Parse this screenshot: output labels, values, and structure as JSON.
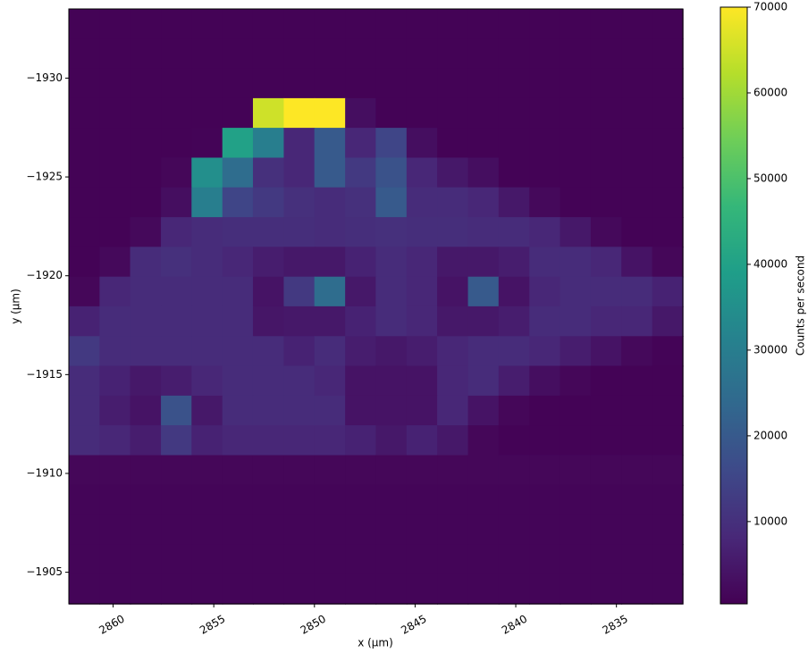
{
  "chart_data": {
    "type": "heatmap",
    "xlabel": "x (µm)",
    "ylabel": "y (µm)",
    "colorbar_label": "Counts per second",
    "colormap": "viridis",
    "xlim": [
      2862.2,
      2831.7
    ],
    "xticks": [
      2860,
      2855,
      2850,
      2845,
      2840,
      2835
    ],
    "ylim": [
      -1933.5,
      -1903.4
    ],
    "yticks": [
      {
        "value": -1930,
        "label": "−1930"
      },
      {
        "value": -1925,
        "label": "−1925"
      },
      {
        "value": -1920,
        "label": "−1920"
      },
      {
        "value": -1915,
        "label": "−1915"
      },
      {
        "value": -1910,
        "label": "−1910"
      },
      {
        "value": -1905,
        "label": "−1905"
      }
    ],
    "clim": [
      400,
      70000
    ],
    "cticks": [
      10000,
      20000,
      30000,
      40000,
      50000,
      60000,
      70000
    ],
    "x": [
      2861.44,
      2859.91,
      2858.39,
      2856.86,
      2855.34,
      2853.81,
      2852.29,
      2850.76,
      2849.24,
      2847.71,
      2846.19,
      2844.66,
      2843.14,
      2841.61,
      2840.09,
      2838.56,
      2837.04,
      2835.51,
      2833.99,
      2832.46
    ],
    "y": [
      -1932.75,
      -1931.24,
      -1929.74,
      -1928.23,
      -1926.73,
      -1925.22,
      -1923.72,
      -1922.21,
      -1920.71,
      -1919.2,
      -1917.7,
      -1916.19,
      -1914.69,
      -1913.18,
      -1911.68,
      -1910.17,
      -1908.67,
      -1907.16,
      -1905.66,
      -1904.15
    ],
    "values": [
      [
        800,
        800,
        800,
        800,
        800,
        800,
        800,
        800,
        800,
        800,
        800,
        800,
        800,
        800,
        800,
        800,
        800,
        800,
        800,
        800
      ],
      [
        800,
        800,
        800,
        800,
        800,
        800,
        800,
        800,
        800,
        800,
        800,
        800,
        800,
        800,
        800,
        800,
        800,
        800,
        800,
        800
      ],
      [
        800,
        800,
        800,
        800,
        800,
        800,
        800,
        800,
        800,
        800,
        800,
        800,
        800,
        800,
        800,
        800,
        800,
        800,
        800,
        800
      ],
      [
        800,
        800,
        800,
        800,
        800,
        800,
        65000,
        70000,
        70000,
        3000,
        800,
        800,
        800,
        800,
        800,
        800,
        800,
        800,
        800,
        800
      ],
      [
        800,
        800,
        800,
        800,
        1000,
        40000,
        30000,
        8000,
        20000,
        8000,
        15000,
        3000,
        800,
        800,
        800,
        800,
        800,
        800,
        800,
        800
      ],
      [
        800,
        800,
        800,
        1500,
        35000,
        25000,
        10000,
        8000,
        20000,
        12000,
        18000,
        8000,
        5000,
        3000,
        800,
        800,
        800,
        800,
        800,
        800
      ],
      [
        800,
        800,
        800,
        3000,
        30000,
        15000,
        12000,
        10000,
        9000,
        10000,
        20000,
        9000,
        9000,
        8000,
        5000,
        2000,
        800,
        800,
        800,
        800
      ],
      [
        800,
        800,
        2000,
        8000,
        9000,
        9500,
        9500,
        9500,
        9000,
        9500,
        10000,
        9500,
        9500,
        9000,
        9000,
        8000,
        5000,
        2000,
        800,
        800
      ],
      [
        800,
        2000,
        9000,
        10000,
        9000,
        8000,
        6000,
        5000,
        5000,
        7000,
        9000,
        8000,
        5000,
        5000,
        6000,
        9000,
        9000,
        8000,
        4000,
        1500
      ],
      [
        1500,
        8000,
        9000,
        9000,
        9000,
        9000,
        4000,
        12000,
        25000,
        5000,
        9000,
        8000,
        4000,
        20000,
        4000,
        8000,
        9000,
        9000,
        9000,
        7000
      ],
      [
        7000,
        9000,
        9000,
        9000,
        9000,
        9000,
        4500,
        5000,
        5000,
        7000,
        9000,
        8000,
        5000,
        5000,
        6000,
        9000,
        9000,
        8000,
        8000,
        5000
      ],
      [
        12000,
        9000,
        9000,
        9000,
        9000,
        9000,
        9000,
        7000,
        9000,
        6000,
        5000,
        6000,
        8000,
        9000,
        9000,
        8000,
        6000,
        4000,
        2000,
        1000
      ],
      [
        9000,
        7000,
        5000,
        6000,
        8000,
        9000,
        9000,
        9000,
        8000,
        4000,
        4000,
        4000,
        8000,
        9000,
        6000,
        3000,
        1500,
        800,
        800,
        800
      ],
      [
        9000,
        6000,
        4000,
        18000,
        5000,
        9000,
        9000,
        9000,
        9000,
        4000,
        4000,
        4000,
        8000,
        4000,
        1500,
        800,
        800,
        800,
        800,
        800
      ],
      [
        9000,
        8000,
        6000,
        12000,
        7000,
        8000,
        8000,
        8000,
        8000,
        7000,
        5000,
        7000,
        5000,
        1500,
        800,
        800,
        800,
        800,
        800,
        800
      ],
      [
        1500,
        1500,
        1500,
        1500,
        1500,
        1500,
        1500,
        1500,
        1500,
        1500,
        1500,
        1500,
        1500,
        1500,
        1500,
        1500,
        1500,
        1500,
        1500,
        1500
      ],
      [
        1200,
        1200,
        1200,
        1200,
        1200,
        1200,
        1200,
        1200,
        1200,
        1200,
        1200,
        1200,
        1200,
        1200,
        1200,
        1200,
        1200,
        1200,
        1200,
        1200
      ],
      [
        1200,
        1200,
        1200,
        1200,
        1200,
        1200,
        1200,
        1200,
        1200,
        1200,
        1200,
        1200,
        1200,
        1200,
        1200,
        1200,
        1200,
        1200,
        1200,
        1200
      ],
      [
        1200,
        1200,
        1200,
        1200,
        1200,
        1200,
        1200,
        1200,
        1200,
        1200,
        1200,
        1200,
        1200,
        1200,
        1200,
        1200,
        1200,
        1200,
        1200,
        1200
      ],
      [
        1200,
        1200,
        1200,
        1200,
        1200,
        1200,
        1200,
        1200,
        1200,
        1200,
        1200,
        1200,
        1200,
        1200,
        1200,
        1200,
        1200,
        1200,
        1200,
        1200
      ]
    ]
  }
}
